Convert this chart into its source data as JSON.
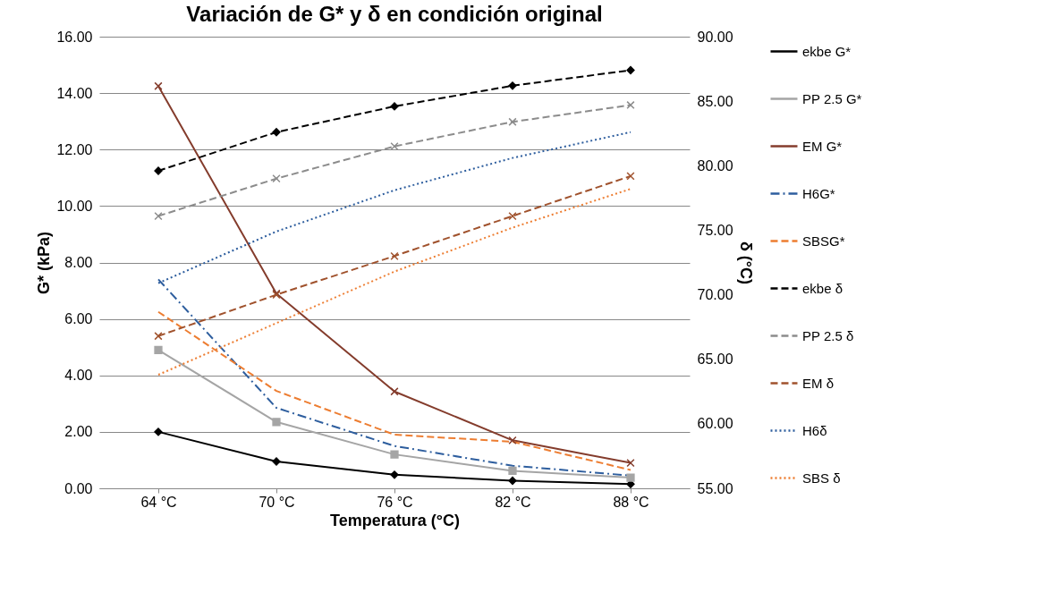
{
  "chart_data": {
    "type": "line",
    "title": "Variación de G* y δ en condición original",
    "xlabel": "Temperatura (°C)",
    "ylabel": "G* (kPa)",
    "y2label": "δ (°C)",
    "categories": [
      "64 °C",
      "70 °C",
      "76 °C",
      "82 °C",
      "88 °C"
    ],
    "ylim": [
      0,
      16
    ],
    "yticks": [
      {
        "value": 0,
        "label": "0.00"
      },
      {
        "value": 2,
        "label": "2.00"
      },
      {
        "value": 4,
        "label": "4.00"
      },
      {
        "value": 6,
        "label": "6.00"
      },
      {
        "value": 8,
        "label": "8.00"
      },
      {
        "value": 10,
        "label": "10.00"
      },
      {
        "value": 12,
        "label": "12.00"
      },
      {
        "value": 14,
        "label": "14.00"
      },
      {
        "value": 16,
        "label": "16.00"
      }
    ],
    "y2lim": [
      55,
      90
    ],
    "y2ticks": [
      {
        "value": 55,
        "label": "55.00"
      },
      {
        "value": 60,
        "label": "60.00"
      },
      {
        "value": 65,
        "label": "65.00"
      },
      {
        "value": 70,
        "label": "70.00"
      },
      {
        "value": 75,
        "label": "75.00"
      },
      {
        "value": 80,
        "label": "80.00"
      },
      {
        "value": 85,
        "label": "85.00"
      },
      {
        "value": 90,
        "label": "90.00"
      }
    ],
    "grid": "y",
    "legend": "right",
    "series": [
      {
        "name": "ekbe G*",
        "color": "#000000",
        "marker": "diamond",
        "line_style": "solid",
        "values": [
          2.0,
          0.95,
          0.48,
          0.27,
          0.15
        ]
      },
      {
        "name": "PP 2.5 G*",
        "color": "#a5a5a5",
        "marker": "square",
        "line_style": "solid",
        "values": [
          4.9,
          2.35,
          1.2,
          0.62,
          0.38
        ]
      },
      {
        "name": "EM G*",
        "color": "#843c2c",
        "marker": "cross",
        "line_style": "solid",
        "values": [
          14.25,
          6.9,
          3.43,
          1.7,
          0.9
        ]
      },
      {
        "name": "H6G*",
        "color": "#2e5e9e",
        "marker": "none",
        "line_style": "dashdot",
        "values": [
          7.4,
          2.85,
          1.5,
          0.8,
          0.45
        ]
      },
      {
        "name": "SBSG*",
        "color": "#ed7d31",
        "marker": "none",
        "line_style": "dashed",
        "values": [
          6.25,
          3.45,
          1.9,
          1.65,
          0.65
        ]
      },
      {
        "name": "ekbe δ",
        "color": "#000000",
        "marker": "diamond",
        "line_style": "dashed",
        "axis": "y2",
        "values": [
          79.6,
          82.6,
          84.6,
          86.2,
          87.4
        ]
      },
      {
        "name": "PP 2.5 δ",
        "color": "#8c8c8c",
        "marker": "cross",
        "line_style": "dashed",
        "axis": "y2",
        "values": [
          76.1,
          79.0,
          81.5,
          83.4,
          84.7
        ]
      },
      {
        "name": "EM δ",
        "color": "#a0522d",
        "marker": "cross",
        "line_style": "dashed",
        "axis": "y2",
        "values": [
          66.8,
          70.0,
          73.0,
          76.1,
          79.2
        ]
      },
      {
        "name": "H6δ",
        "color": "#2e5e9e",
        "marker": "none",
        "line_style": "dotted",
        "axis": "y2",
        "values": [
          70.9,
          74.9,
          78.1,
          80.6,
          82.6
        ]
      },
      {
        "name": "SBS δ",
        "color": "#ed7d31",
        "marker": "none",
        "line_style": "dotted",
        "axis": "y2",
        "values": [
          63.8,
          67.8,
          71.8,
          75.2,
          78.2
        ]
      }
    ]
  }
}
